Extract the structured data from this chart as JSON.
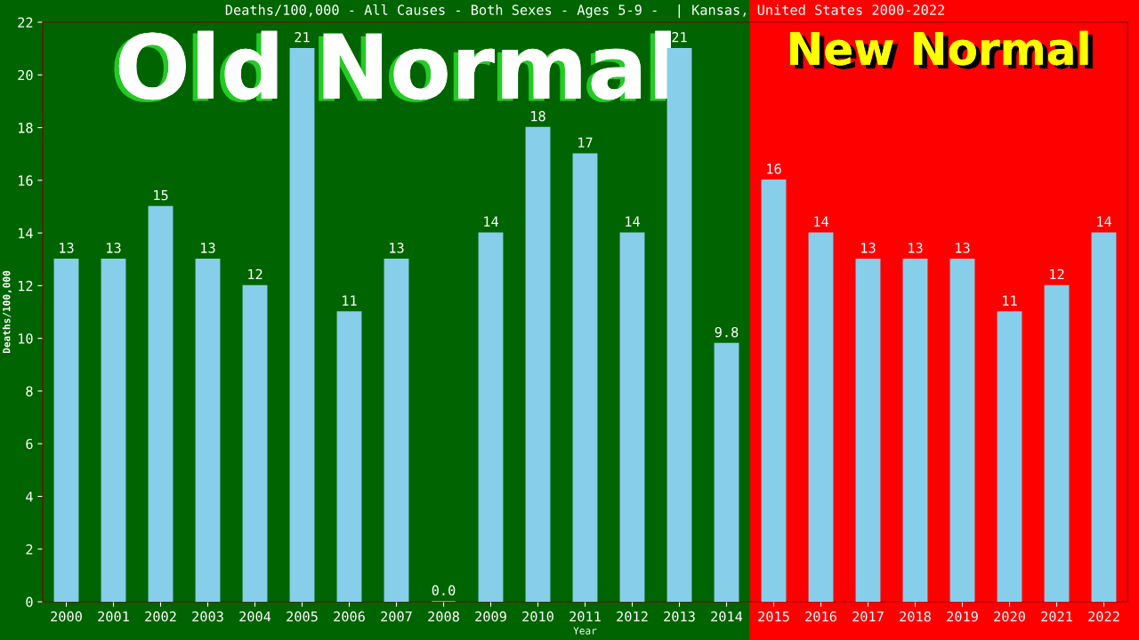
{
  "chart_data": {
    "type": "bar",
    "title": "Deaths/100,000 - All Causes - Both Sexes - Ages 5-9 -  | Kansas, United States 2000-2022",
    "xlabel": "Year",
    "ylabel": "Deaths/100,000",
    "categories": [
      "2000",
      "2001",
      "2002",
      "2003",
      "2004",
      "2005",
      "2006",
      "2007",
      "2008",
      "2009",
      "2010",
      "2011",
      "2012",
      "2013",
      "2014",
      "2015",
      "2016",
      "2017",
      "2018",
      "2019",
      "2020",
      "2021",
      "2022"
    ],
    "values": [
      13,
      13,
      15,
      13,
      12,
      21,
      11,
      13,
      0,
      14,
      18,
      17,
      14,
      21,
      9.8,
      16,
      14,
      13,
      13,
      13,
      11,
      12,
      14
    ],
    "value_labels": [
      "13",
      "13",
      "15",
      "13",
      "12",
      "21",
      "11",
      "13",
      "0.0",
      "14",
      "18",
      "17",
      "14",
      "21",
      "9.8",
      "16",
      "14",
      "13",
      "13",
      "13",
      "11",
      "12",
      "14"
    ],
    "color": "#87ceeb",
    "ylim": [
      0,
      22
    ],
    "yticks": [
      0,
      2,
      4,
      6,
      8,
      10,
      12,
      14,
      16,
      18,
      20,
      22
    ],
    "grid": false,
    "bands": [
      {
        "axis": "x",
        "from": "2000",
        "to": "2014",
        "label": "Old Normal",
        "color": "#006400"
      },
      {
        "axis": "x",
        "from": "2015",
        "to": "2022",
        "label": "New Normal",
        "color": "#ff0000"
      }
    ]
  }
}
